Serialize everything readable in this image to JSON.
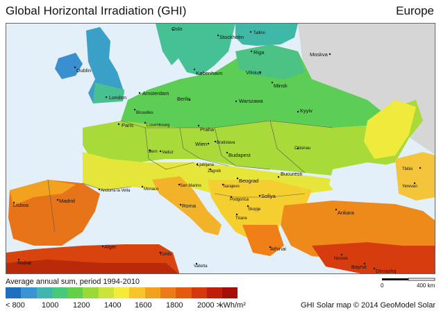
{
  "header": {
    "title": "Global Horizontal Irradiation (GHI)",
    "region": "Europe"
  },
  "legend": {
    "subtitle": "Average annual sum, period 1994-2010",
    "colors": [
      "#1f6fc0",
      "#3a93d2",
      "#3fb7b0",
      "#48c97a",
      "#63d047",
      "#9ad93a",
      "#cbe33a",
      "#f3ea3a",
      "#f6c52b",
      "#f2a11f",
      "#ec7c17",
      "#e45a10",
      "#d6380d",
      "#bf1f0a",
      "#a50f08"
    ],
    "tick_labels": [
      "< 800",
      "1000",
      "1200",
      "1400",
      "1600",
      "1800",
      "2000 >"
    ],
    "unit": "kWh/m²"
  },
  "scale": {
    "zero": "0",
    "distance": "400 km"
  },
  "credit": "GHI Solar map © 2014 GeoModel Solar",
  "cities": [
    "Oslo",
    "Tallinn",
    "Stockholm",
    "Riga",
    "Moskva",
    "Dublin",
    "København",
    "Vilnius",
    "Minsk",
    "London",
    "Amsterdam",
    "Berlin",
    "Warszawa",
    "Bruxelles",
    "Kyyiv",
    "Paris",
    "Luxembourg",
    "Praha",
    "Wien",
    "Bratislava",
    "Bern",
    "Vaduz",
    "Chisinau",
    "Budapest",
    "Ljubljana",
    "Zagreb",
    "Tbilisi",
    "Bucuresti",
    "Beograd",
    "Sarajevo",
    "Andorra la Vella",
    "Monaco",
    "San Marino",
    "Yerevan",
    "Podgorica",
    "Sofiya",
    "Lisboa",
    "Madrid",
    "Roma",
    "Skopje",
    "Tirane",
    "Ankara",
    "Athinai",
    "Alger",
    "Tunis",
    "Valletta",
    "Nicosia",
    "Rabat",
    "Bayrut",
    "Dimashq"
  ]
}
